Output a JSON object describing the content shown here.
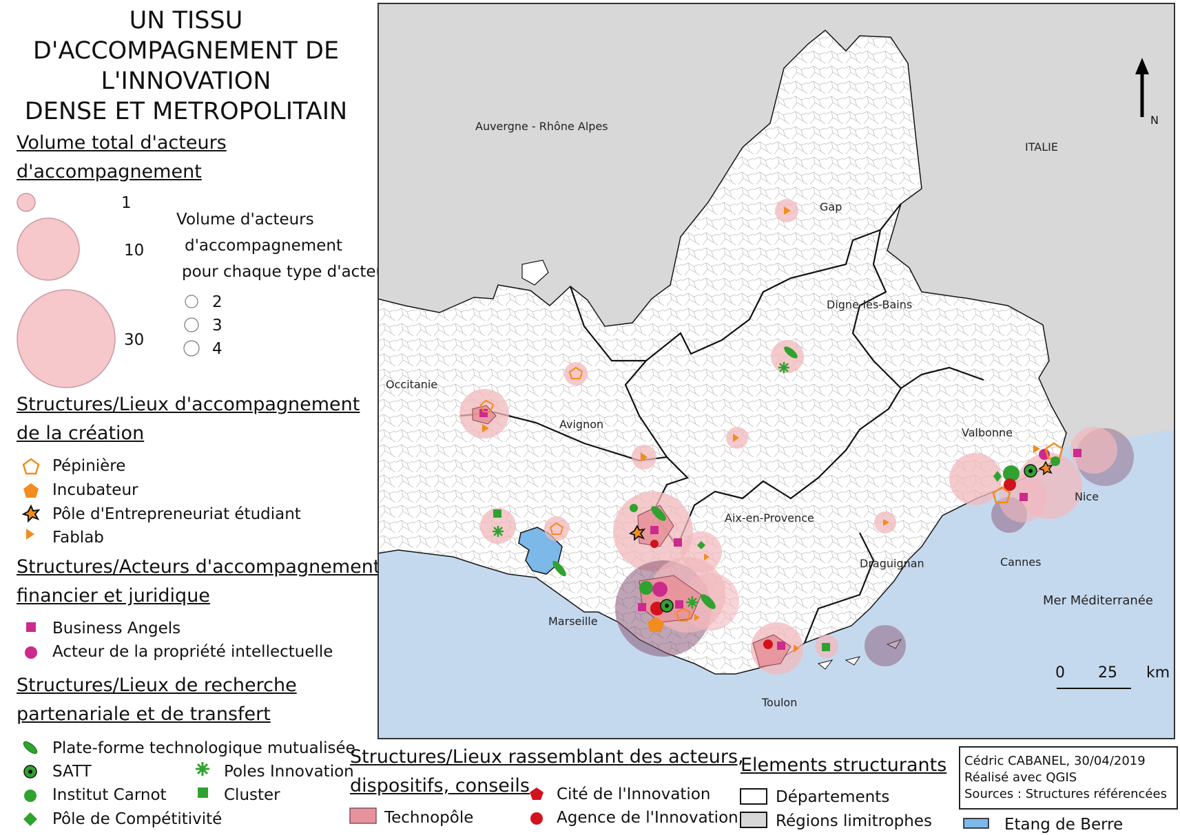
{
  "title": {
    "line1": "UN TISSU",
    "line2": "D'ACCOMPAGNEMENT DE",
    "line3": "L'INNOVATION",
    "line4": "DENSE ET METROPOLITAIN"
  },
  "legend": {
    "volume_total": {
      "heading1": "Volume total d'acteurs",
      "heading2": " d'accompagnement",
      "v1": "1",
      "v10": "10",
      "v30": "30"
    },
    "volume_type": {
      "line1": "Volume d'acteurs",
      "line2": "d'accompagnement",
      "line3": "pour chaque type d'acteurs",
      "v2": "2",
      "v3": "3",
      "v4": "4"
    },
    "creation": {
      "heading1": "Structures/Lieux d'accompagnement",
      "heading2": " de la création",
      "items": [
        "Pépinière",
        "Incubateur",
        "Pôle d'Entrepreneuriat étudiant",
        "Fablab"
      ]
    },
    "financier": {
      "heading1": "Structures/Acteurs d'accompagnement",
      "heading2": " financier et juridique",
      "items": [
        "Business Angels",
        "Acteur de la propriété intellectuelle"
      ]
    },
    "recherche": {
      "heading1": "Structures/Lieux de recherche",
      "heading2": " partenariale et de transfert",
      "items": [
        "Plate-forme technologique mutualisée",
        "SATT",
        "Institut Carnot",
        "Pôle de Compétitivité",
        "Poles Innovation",
        "Cluster"
      ]
    },
    "rassemblant": {
      "heading1": "Structures/Lieux rassemblant des acteurs,",
      "heading2": " dispositifs, conseils",
      "items": [
        "Technopôle",
        "Cité de l'Innovation",
        "Agence de l'Innovation"
      ]
    },
    "elements": {
      "heading": "Elements structurants",
      "items": [
        "Départements",
        "Régions limitrophes",
        "Etang de Berre"
      ]
    }
  },
  "map": {
    "places": [
      "Auvergne - Rhône Alpes",
      "ITALIE",
      "Gap",
      "Digne-les-Bains",
      "Occitanie",
      "Avignon",
      "Valbonne",
      "Nice",
      "Aix-en-Provence",
      "Draguignan",
      "Cannes",
      "Mer Méditerranée",
      "Marseille",
      "Toulon"
    ],
    "north": "N",
    "scale": {
      "zero": "0",
      "dist": "25",
      "unit": "km"
    }
  },
  "credits": {
    "author": "Cédric CABANEL, 30/04/2019",
    "tool": "Réalisé avec QGIS",
    "sources": "Sources : Structures référencées"
  },
  "colors": {
    "sea": "#c5d9ee",
    "region": "#d8d8d8",
    "bubble": "#f2b8bc",
    "purple": "#8a5a78",
    "orange": "#f28c1e",
    "magenta": "#cc2a8c",
    "green": "#2fa22f",
    "red": "#d2121c",
    "technopole": "#e8939b",
    "berre": "#7cb8e8"
  }
}
